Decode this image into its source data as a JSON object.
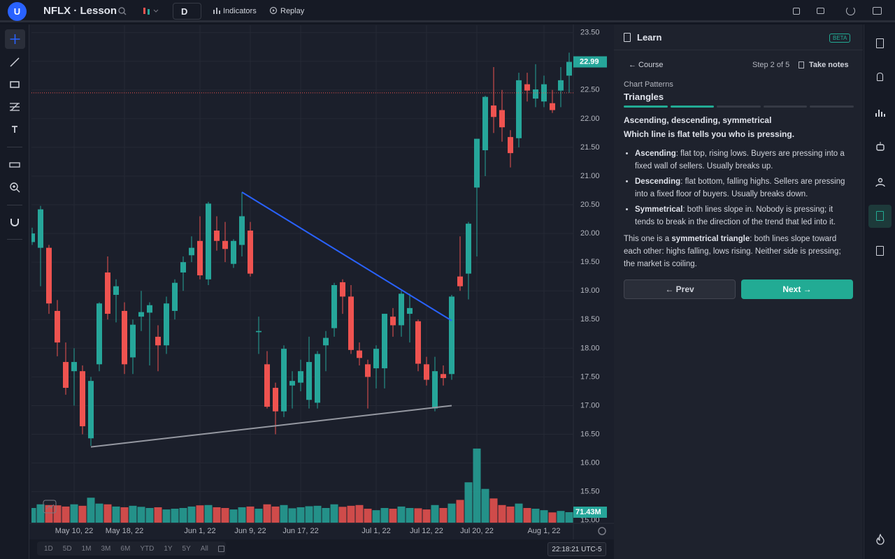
{
  "topbar": {
    "avatar": "U",
    "symbol": "NFLX · Lesson",
    "interval": "D",
    "indicators": "Indicators",
    "replay": "Replay"
  },
  "bottombar": {
    "ranges": [
      "1D",
      "5D",
      "1M",
      "3M",
      "6M",
      "YTD",
      "1Y",
      "5Y",
      "All"
    ],
    "clock": "22:18:21 UTC-5"
  },
  "learn": {
    "title": "Learn",
    "badge": "BETA",
    "back": "← Course",
    "step": "Step 2 of 5",
    "notes": "Take notes",
    "section": "Chart Patterns",
    "lesson": "Triangles",
    "heading": "Ascending, descending, symmetrical",
    "subheading": "Which line is flat tells you who is pressing.",
    "bullets": [
      {
        "term": "Ascending",
        "text": ": flat top, rising lows. Buyers are pressing into a fixed wall of sellers. Usually breaks up."
      },
      {
        "term": "Descending",
        "text": ": flat bottom, falling highs. Sellers are pressing into a fixed floor of buyers. Usually breaks down."
      },
      {
        "term": "Symmetrical",
        "text": ": both lines slope in. Nobody is pressing; it tends to break in the direction of the trend that led into it."
      }
    ],
    "summary": [
      "This one is a ",
      "symmetrical triangle",
      ": both lines slope toward each other: highs falling, lows rising. Neither side is pressing; the market is coiling."
    ],
    "prev": "← Prev",
    "next": "Next →"
  },
  "chart_data": {
    "type": "candlestick",
    "up_color": "#26a69a",
    "down_color": "#ef5350",
    "categories": [
      null,
      null,
      null,
      null,
      null,
      "May 10, 22",
      null,
      null,
      null,
      null,
      null,
      "May 18, 22",
      null,
      null,
      null,
      null,
      null,
      null,
      null,
      null,
      "Jun 1, 22",
      null,
      null,
      null,
      null,
      null,
      "Jun 9, 22",
      null,
      null,
      null,
      null,
      null,
      "Jun 17, 22",
      null,
      null,
      null,
      null,
      null,
      null,
      null,
      null,
      "Jul 1, 22",
      null,
      null,
      null,
      null,
      null,
      "Jul 12, 22",
      null,
      null,
      null,
      null,
      null,
      "Jul 20, 22",
      null,
      null,
      null,
      null,
      null,
      null,
      null,
      "Aug 1, 22",
      null,
      null,
      null
    ],
    "open": [
      19.85,
      19.75,
      19.75,
      18.65,
      17.76,
      17.6,
      17.6,
      16.43,
      17.72,
      19.32,
      18.93,
      18.65,
      17.84,
      18.55,
      18.62,
      18.2,
      18.05,
      18.65,
      19.32,
      19.62,
      19.87,
      19.2,
      20.05,
      19.87,
      19.47,
      19.8,
      20.05,
      18.28,
      17.72,
      17.31,
      16.9,
      17.35,
      17.4,
      17.1,
      17.05,
      18.05,
      18.35,
      19.15,
      18.9,
      17.96,
      17.72,
      17.65,
      17.65,
      18.55,
      18.4,
      18.6,
      18.47,
      17.72,
      16.95,
      17.55,
      17.55,
      19.25,
      19.3,
      20.8,
      21.45,
      22.23,
      22.15,
      21.68,
      21.66,
      22.6,
      22.35,
      22.3,
      22.27,
      22.49,
      22.75
    ],
    "high": [
      20.1,
      20.48,
      19.8,
      18.84,
      18.1,
      18.0,
      17.7,
      17.5,
      18.8,
      19.6,
      19.2,
      18.8,
      18.5,
      19.0,
      18.8,
      18.4,
      18.9,
      19.2,
      19.6,
      19.95,
      20.3,
      20.55,
      20.3,
      20.2,
      19.9,
      20.72,
      20.2,
      18.55,
      17.95,
      17.4,
      18.05,
      17.6,
      17.8,
      18.2,
      17.95,
      18.3,
      19.14,
      19.2,
      19.1,
      18.1,
      17.8,
      18.05,
      18.6,
      18.7,
      19.0,
      18.95,
      18.5,
      17.85,
      17.85,
      17.7,
      18.93,
      19.95,
      20.2,
      21.65,
      22.4,
      22.9,
      22.5,
      21.8,
      22.8,
      22.8,
      22.95,
      22.75,
      22.5,
      22.9,
      23.15
    ],
    "low": [
      19.8,
      19.08,
      18.6,
      17.86,
      17.19,
      17.0,
      16.5,
      16.3,
      17.6,
      18.5,
      18.45,
      17.55,
      17.55,
      18.3,
      17.7,
      17.6,
      17.9,
      18.5,
      19.0,
      19.5,
      19.2,
      19.1,
      19.7,
      19.5,
      19.4,
      19.6,
      19.25,
      17.9,
      16.95,
      16.5,
      16.8,
      16.95,
      17.25,
      16.95,
      16.95,
      17.6,
      18.2,
      18.6,
      17.9,
      17.7,
      16.95,
      17.3,
      17.3,
      18.2,
      18.2,
      18.1,
      17.6,
      17.35,
      16.9,
      17.35,
      17.45,
      19.0,
      18.85,
      19.6,
      21.0,
      21.75,
      21.6,
      21.15,
      21.5,
      22.3,
      22.2,
      22.2,
      22.1,
      22.2,
      22.45
    ],
    "close": [
      20.0,
      20.42,
      18.78,
      18.1,
      17.31,
      17.76,
      16.64,
      17.43,
      18.78,
      18.6,
      19.08,
      17.72,
      18.41,
      18.63,
      18.75,
      18.05,
      18.78,
      19.14,
      19.5,
      19.75,
      19.27,
      20.52,
      19.87,
      19.73,
      19.87,
      20.3,
      19.3,
      18.3,
      16.98,
      16.9,
      17.99,
      17.43,
      17.6,
      17.76,
      17.9,
      18.18,
      19.1,
      18.9,
      17.97,
      17.83,
      17.5,
      17.99,
      18.6,
      18.4,
      18.95,
      18.7,
      17.73,
      17.45,
      17.6,
      17.48,
      18.9,
      19.08,
      20.17,
      21.65,
      22.38,
      22.03,
      21.85,
      21.4,
      22.67,
      22.49,
      22.51,
      22.6,
      22.15,
      22.67,
      22.99
    ],
    "volume": [
      100,
      125,
      120,
      118,
      110,
      125,
      115,
      170,
      130,
      125,
      110,
      105,
      115,
      108,
      100,
      105,
      90,
      95,
      100,
      110,
      118,
      120,
      105,
      100,
      90,
      105,
      110,
      95,
      125,
      110,
      120,
      98,
      105,
      112,
      115,
      100,
      125,
      108,
      115,
      120,
      95,
      85,
      100,
      95,
      110,
      100,
      98,
      90,
      120,
      100,
      130,
      155,
      275,
      505,
      230,
      165,
      120,
      110,
      130,
      100,
      95,
      85,
      70,
      80,
      71.43
    ],
    "volume_last_label": "71.43M",
    "ylim": [
      14.96,
      23.63
    ],
    "yticks": [
      {
        "value": 23.5,
        "label": "23.50"
      },
      {
        "value": 23,
        "label": "23.00"
      },
      {
        "value": 22.5,
        "label": "22.50"
      },
      {
        "value": 22,
        "label": "22.00"
      },
      {
        "value": 21.5,
        "label": "21.50"
      },
      {
        "value": 21,
        "label": "21.00"
      },
      {
        "value": 20.5,
        "label": "20.50"
      },
      {
        "value": 20,
        "label": "20.00"
      },
      {
        "value": 19.5,
        "label": "19.50"
      },
      {
        "value": 19,
        "label": "19.00"
      },
      {
        "value": 18.5,
        "label": "18.50"
      },
      {
        "value": 18,
        "label": "18.00"
      },
      {
        "value": 17.5,
        "label": "17.50"
      },
      {
        "value": 17,
        "label": "17.00"
      },
      {
        "value": 16.5,
        "label": "16.50"
      },
      {
        "value": 16,
        "label": "16.00"
      },
      {
        "value": 15.5,
        "label": "15.50"
      },
      {
        "value": 15,
        "label": "15.00"
      }
    ],
    "y2lim": [
      0,
      3390
    ],
    "grid": true,
    "price_line": {
      "value": 22.45,
      "color": "#ef5350"
    },
    "trendlines": [
      {
        "color": "#2962ff",
        "x": [
          25,
          50
        ],
        "y": [
          20.72,
          18.48
        ]
      },
      {
        "color": "#9598a1",
        "x": [
          7,
          50
        ],
        "y": [
          16.28,
          17.0
        ]
      }
    ]
  }
}
